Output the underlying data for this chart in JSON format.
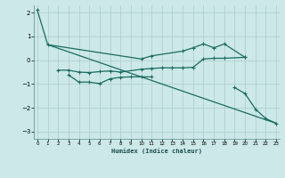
{
  "xlabel": "Humidex (Indice chaleur)",
  "bg_color": "#cce8e8",
  "grid_color": "#aacccc",
  "line_color": "#1a6b60",
  "x": [
    0,
    1,
    2,
    3,
    4,
    5,
    6,
    7,
    8,
    9,
    10,
    11,
    12,
    13,
    14,
    15,
    16,
    17,
    18,
    19,
    20,
    21,
    22,
    23
  ],
  "series1": [
    2.1,
    0.65,
    null,
    null,
    null,
    null,
    null,
    null,
    null,
    null,
    0.05,
    0.18,
    null,
    null,
    0.38,
    0.52,
    0.68,
    0.52,
    0.68,
    null,
    0.12,
    null,
    null,
    null
  ],
  "series2": [
    null,
    null,
    -0.42,
    -0.42,
    -0.5,
    -0.52,
    -0.48,
    -0.45,
    -0.5,
    null,
    -0.38,
    -0.35,
    -0.32,
    -0.32,
    -0.32,
    -0.3,
    0.05,
    0.08,
    0.08,
    null,
    0.12,
    null,
    null,
    null
  ],
  "series3": [
    null,
    null,
    null,
    -0.62,
    -0.92,
    -0.92,
    -0.98,
    -0.78,
    -0.72,
    -0.7,
    -0.7,
    -0.7,
    null,
    null,
    null,
    null,
    null,
    null,
    null,
    null,
    null,
    null,
    null,
    null
  ],
  "series4": [
    null,
    null,
    null,
    null,
    null,
    null,
    null,
    null,
    null,
    null,
    null,
    null,
    null,
    null,
    null,
    null,
    null,
    null,
    null,
    -1.15,
    -1.4,
    -2.05,
    -2.45,
    -2.65
  ],
  "long_line_x": [
    1,
    23
  ],
  "long_line_y": [
    0.65,
    -2.65
  ],
  "xlim": [
    0,
    23
  ],
  "ylim": [
    -3.3,
    2.3
  ],
  "yticks": [
    -3,
    -2,
    -1,
    0,
    1,
    2
  ],
  "xticks": [
    0,
    1,
    2,
    3,
    4,
    5,
    6,
    7,
    8,
    9,
    10,
    11,
    12,
    13,
    14,
    15,
    16,
    17,
    18,
    19,
    20,
    21,
    22,
    23
  ]
}
